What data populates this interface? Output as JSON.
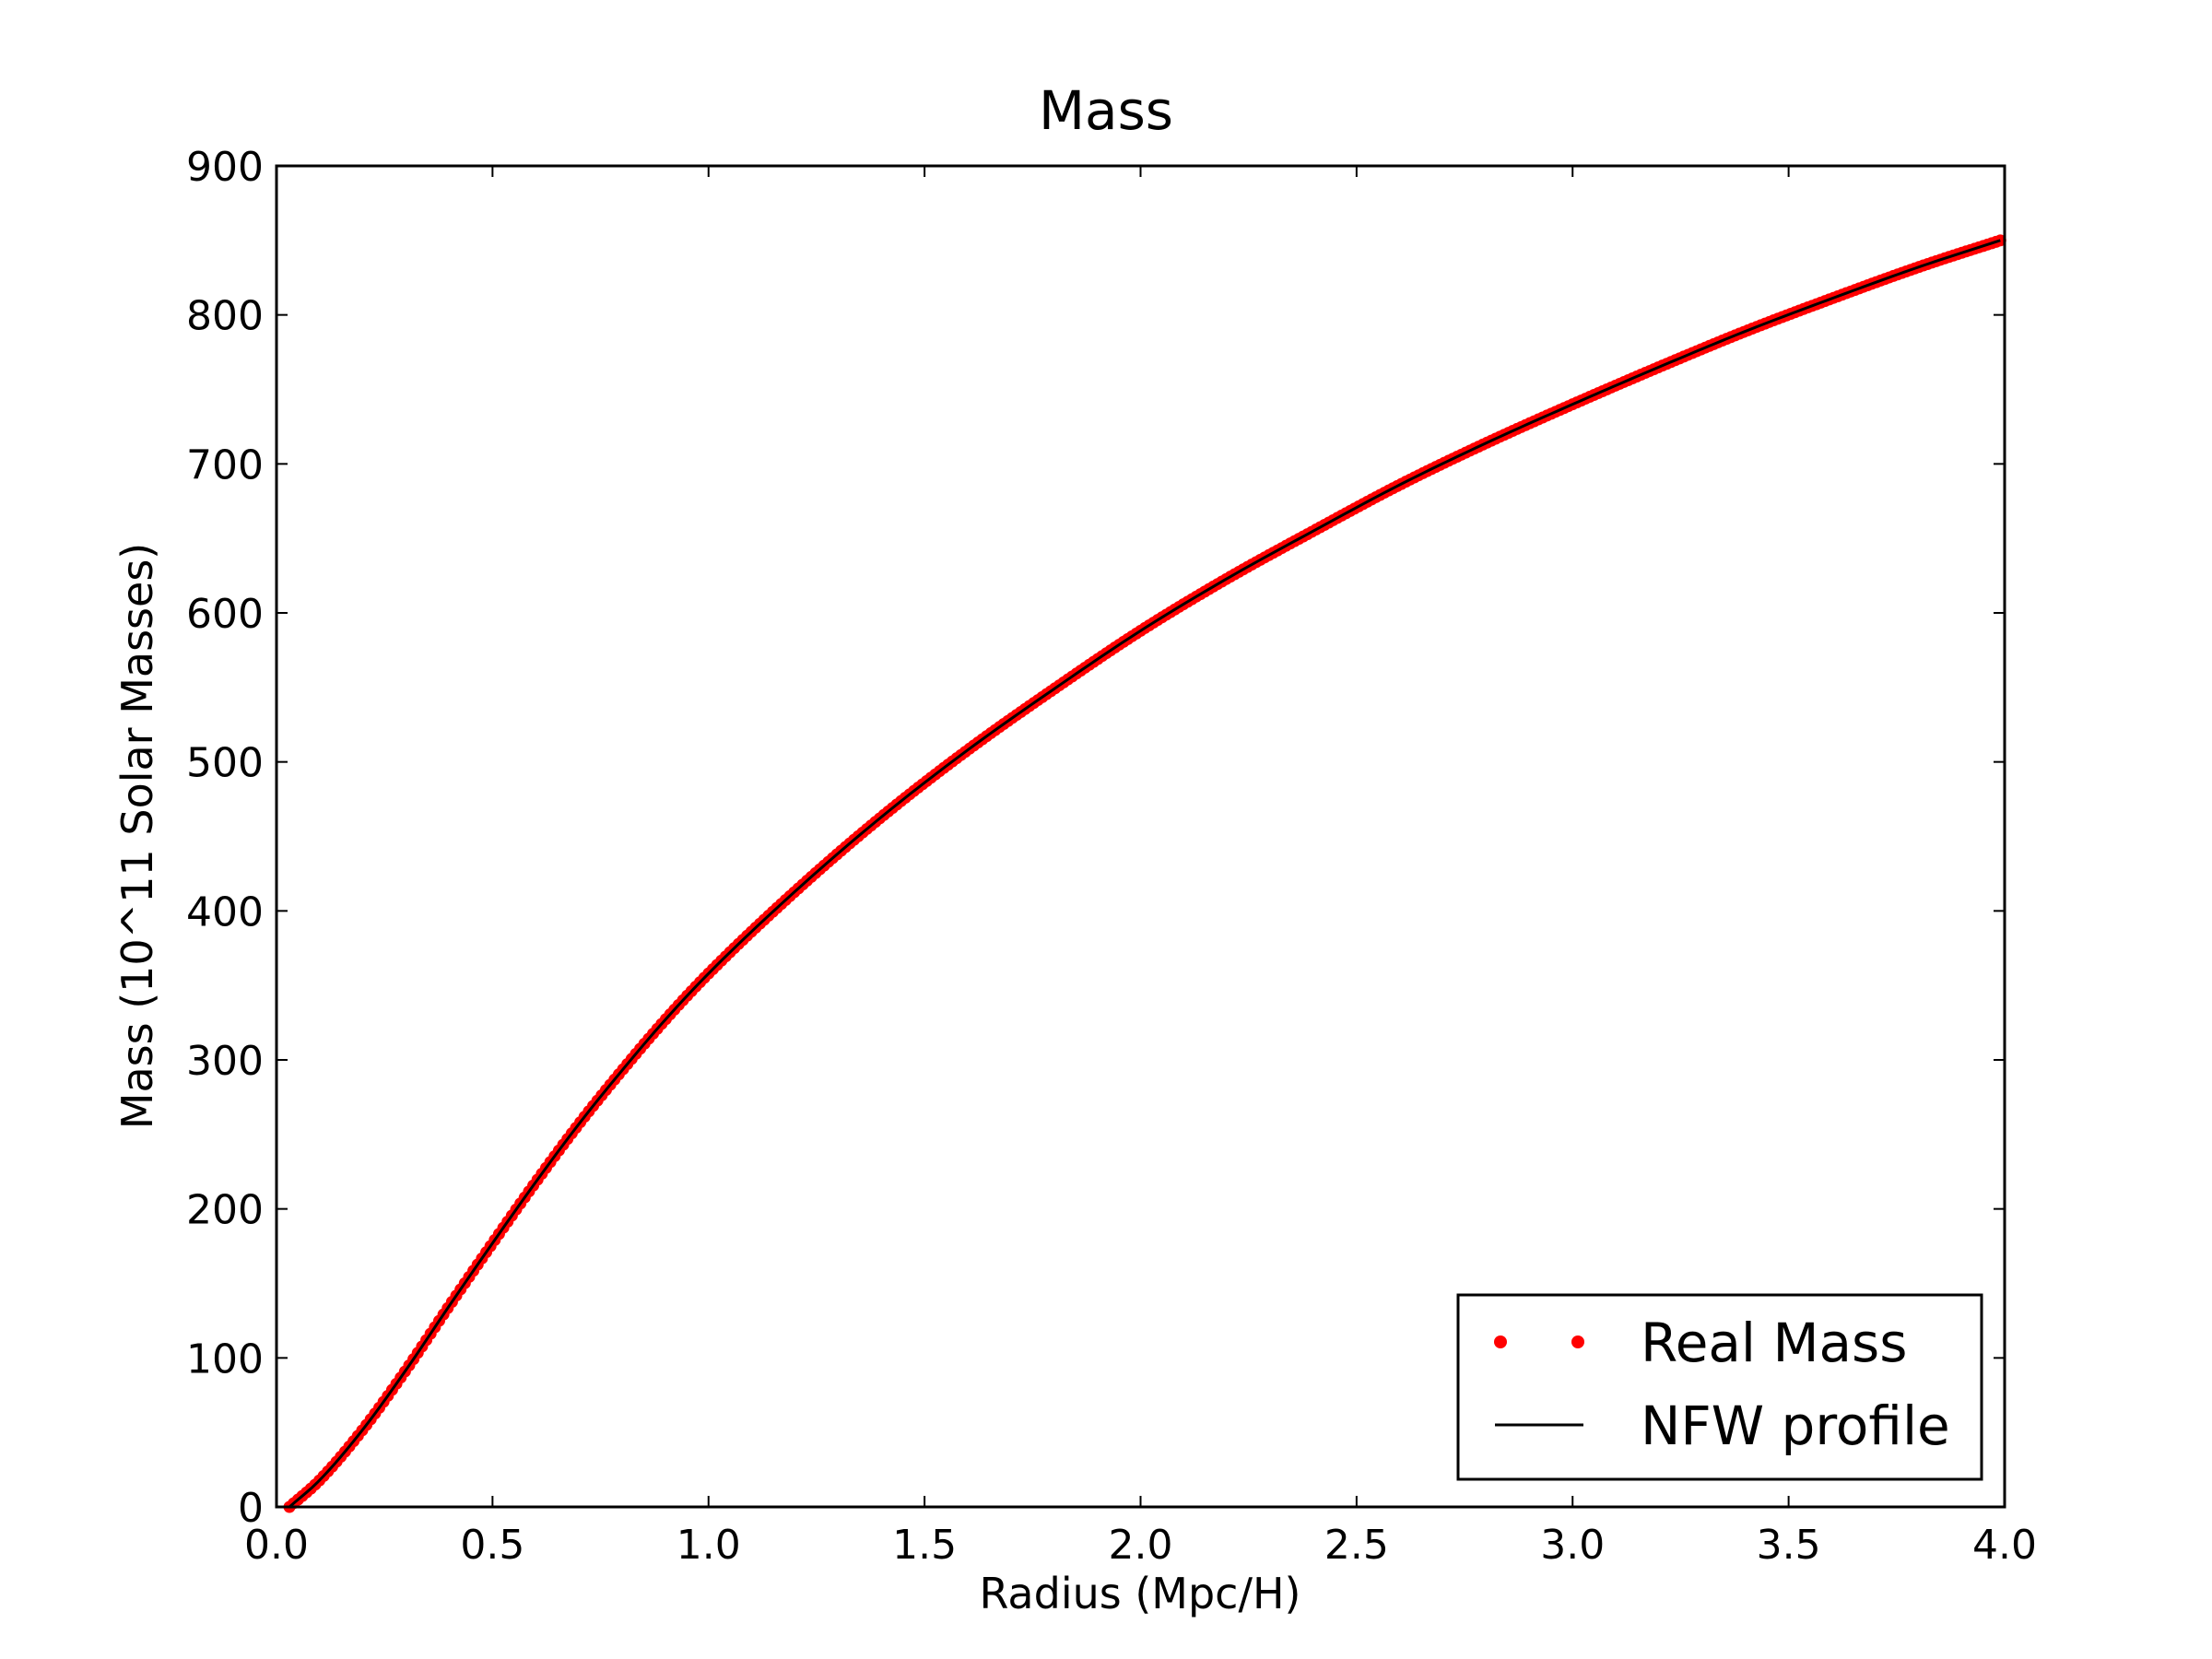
{
  "chart_data": {
    "type": "line",
    "title": "Mass",
    "xlabel": "Radius (Mpc/H)",
    "ylabel": "Mass (10^11 Solar Masses)",
    "xlim": [
      0.0,
      4.0
    ],
    "ylim": [
      0,
      900
    ],
    "xticks": [
      "0.0",
      "0.5",
      "1.0",
      "1.5",
      "2.0",
      "2.5",
      "3.0",
      "3.5",
      "4.0"
    ],
    "yticks": [
      "0",
      "100",
      "200",
      "300",
      "400",
      "500",
      "600",
      "700",
      "800",
      "900"
    ],
    "grid": false,
    "legend_position": "lower right",
    "series": [
      {
        "name": "Real Mass",
        "style": "points",
        "color": "#ff0000",
        "x": [
          0.03,
          0.1,
          0.2,
          0.3,
          0.4,
          0.5,
          0.6,
          0.7,
          0.8,
          0.9,
          1.0,
          1.2,
          1.4,
          1.6,
          1.8,
          2.0,
          2.2,
          2.4,
          2.6,
          2.8,
          3.0,
          3.2,
          3.4,
          3.6,
          3.8,
          3.99
        ],
        "y": [
          0,
          18,
          52,
          92,
          135,
          177,
          218,
          257,
          293,
          327,
          358,
          413,
          463,
          508,
          549,
          588,
          623,
          655,
          686,
          714,
          740,
          765,
          789,
          811,
          832,
          850
        ]
      },
      {
        "name": "NFW profile",
        "style": "line",
        "color": "#000000",
        "x": [
          0.03,
          0.1,
          0.2,
          0.3,
          0.4,
          0.5,
          0.6,
          0.7,
          0.8,
          0.9,
          1.0,
          1.2,
          1.4,
          1.6,
          1.8,
          2.0,
          2.2,
          2.4,
          2.6,
          2.8,
          3.0,
          3.2,
          3.4,
          3.6,
          3.8,
          3.99
        ],
        "y": [
          0,
          18,
          52,
          92,
          135,
          177,
          218,
          257,
          293,
          327,
          358,
          413,
          463,
          508,
          549,
          588,
          623,
          655,
          686,
          714,
          740,
          765,
          789,
          811,
          832,
          850
        ]
      }
    ]
  }
}
